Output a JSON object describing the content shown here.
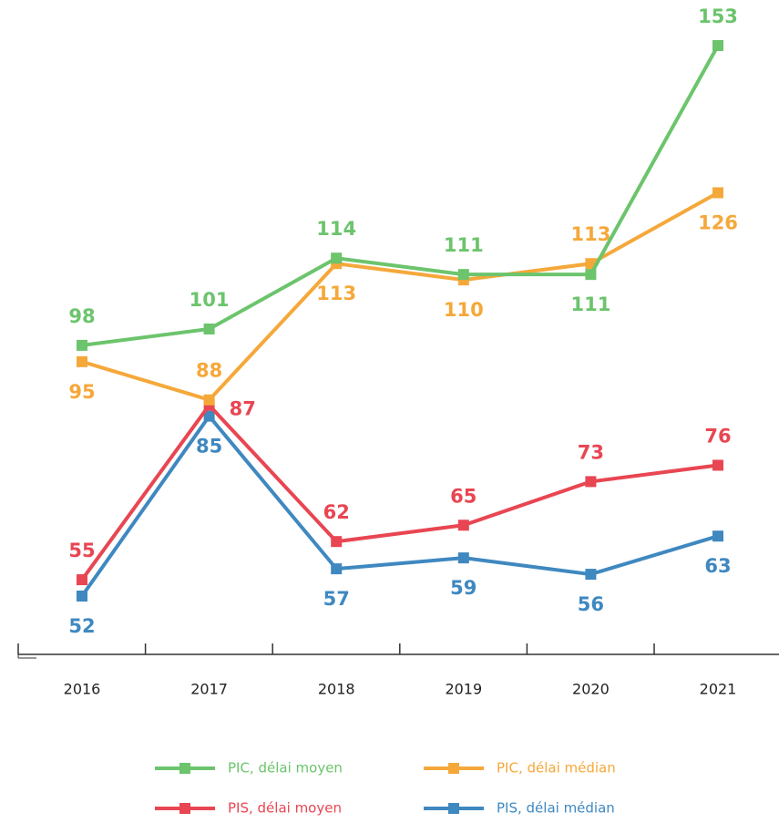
{
  "chart_data": {
    "type": "line",
    "categories": [
      "2016",
      "2017",
      "2018",
      "2019",
      "2020",
      "2021"
    ],
    "series": [
      {
        "name": "PIC, délai moyen",
        "color": "#6cc46c",
        "values": [
          98,
          101,
          114,
          111,
          111,
          153
        ]
      },
      {
        "name": "PIC, délai médian",
        "color": "#f5a83a",
        "values": [
          95,
          88,
          113,
          110,
          113,
          126
        ]
      },
      {
        "name": "PIS, délai moyen",
        "color": "#e84652",
        "values": [
          55,
          87,
          62,
          65,
          73,
          76
        ]
      },
      {
        "name": "PIS, délai médian",
        "color": "#3f88c0",
        "values": [
          52,
          85,
          57,
          59,
          56,
          63
        ]
      }
    ]
  }
}
